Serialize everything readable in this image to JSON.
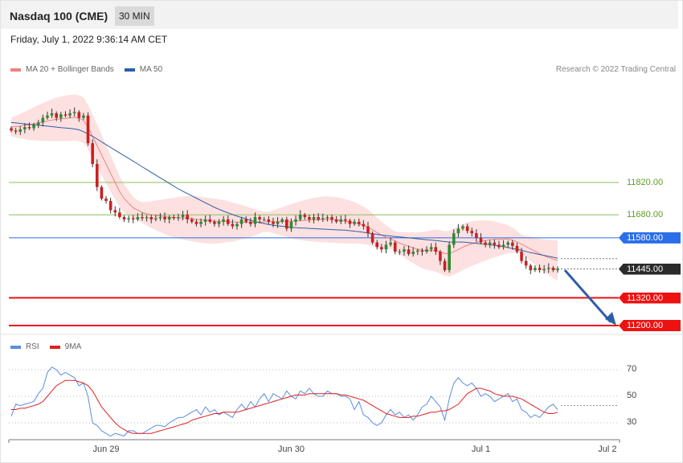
{
  "header": {
    "title": "Nasdaq 100 (CME)",
    "timeframe": "30 MIN"
  },
  "datetime": "Friday, July 1, 2022 9:36:14 AM CET",
  "legend": {
    "ma20": {
      "label": "MA 20 + Bollinger Bands",
      "color": "#f08080"
    },
    "ma50": {
      "label": "MA 50",
      "color": "#2e5ea8"
    }
  },
  "credit": "Research © 2022 Trading Central",
  "rsi_legend": {
    "rsi": {
      "label": "RSI",
      "color": "#5b8ee0"
    },
    "ma9": {
      "label": "9MA",
      "color": "#e02020"
    }
  },
  "chart_data": [
    {
      "type": "line",
      "title": "",
      "price_scale": {
        "ref_a": 11820,
        "ref_b": 11200
      },
      "x_labels": [
        {
          "label": "Jun 29",
          "bar": 21
        },
        {
          "label": "Jun 30",
          "bar": 62
        },
        {
          "label": "Jul 1",
          "bar": 104
        },
        {
          "label": "Jul 2",
          "bar": 132
        }
      ],
      "levels": [
        {
          "name": "resistance-2",
          "value": 11820.0,
          "label": "11820.00",
          "style": "plain",
          "color": "#8cbf5a"
        },
        {
          "name": "resistance-1",
          "value": 11680.0,
          "label": "11680.00",
          "style": "plain",
          "color": "#8cbf5a"
        },
        {
          "name": "pivot",
          "value": 11580.0,
          "label": "11580.00",
          "style": "tag",
          "color": "#2a6ee8"
        },
        {
          "name": "last-price",
          "value": 11445.0,
          "label": "11445.00",
          "style": "tag",
          "color": "#2b2b2b"
        },
        {
          "name": "support-1",
          "value": 11320.0,
          "label": "11320.00",
          "style": "tag",
          "color": "#ee1111"
        },
        {
          "name": "support-2",
          "value": 11200.0,
          "label": "11200.00",
          "style": "tag",
          "color": "#ee1111"
        }
      ],
      "series": [
        {
          "name": "Price",
          "kind": "ohlc-close",
          "values": [
            12045,
            12040,
            12050,
            12060,
            12055,
            12070,
            12080,
            12100,
            12110,
            12120,
            12100,
            12115,
            12110,
            12120,
            12125,
            12100,
            12110,
            11990,
            11900,
            11800,
            11750,
            11740,
            11700,
            11690,
            11670,
            11660,
            11665,
            11660,
            11670,
            11665,
            11670,
            11660,
            11665,
            11670,
            11660,
            11670,
            11665,
            11670,
            11680,
            11660,
            11650,
            11640,
            11650,
            11660,
            11650,
            11640,
            11650,
            11660,
            11640,
            11630,
            11640,
            11660,
            11650,
            11640,
            11670,
            11660,
            11660,
            11650,
            11640,
            11650,
            11660,
            11620,
            11650,
            11660,
            11680,
            11670,
            11660,
            11670,
            11660,
            11665,
            11670,
            11660,
            11650,
            11660,
            11655,
            11640,
            11650,
            11640,
            11630,
            11600,
            11560,
            11540,
            11530,
            11550,
            11560,
            11520,
            11520,
            11530,
            11510,
            11520,
            11525,
            11520,
            11530,
            11540,
            11520,
            11480,
            11440,
            11550,
            11600,
            11620,
            11630,
            11610,
            11600,
            11580,
            11560,
            11550,
            11560,
            11550,
            11540,
            11550,
            11560,
            11545,
            11520,
            11480,
            11460,
            11440,
            11450,
            11440,
            11445,
            11450,
            11440,
            11445
          ],
          "color": "#2e8a2e"
        },
        {
          "name": "MA 20",
          "values": [
            12060,
            12062,
            12064,
            12068,
            12070,
            12074,
            12078,
            12082,
            12086,
            12090,
            12094,
            12096,
            12098,
            12100,
            12102,
            12098,
            12090,
            12060,
            12020,
            11980,
            11940,
            11900,
            11860,
            11820,
            11780,
            11750,
            11730,
            11710,
            11700,
            11690,
            11684,
            11680,
            11678,
            11675,
            11672,
            11670,
            11668,
            11667,
            11666,
            11665,
            11663,
            11660,
            11658,
            11656,
            11654,
            11652,
            11652,
            11652,
            11650,
            11648,
            11648,
            11648,
            11648,
            11647,
            11648,
            11648,
            11649,
            11650,
            11650,
            11650,
            11651,
            11652,
            11652,
            11653,
            11655,
            11656,
            11657,
            11658,
            11659,
            11660,
            11660,
            11659,
            11657,
            11655,
            11652,
            11648,
            11645,
            11640,
            11634,
            11626,
            11615,
            11603,
            11592,
            11583,
            11576,
            11566,
            11557,
            11550,
            11543,
            11537,
            11530,
            11527,
            11525,
            11525,
            11524,
            11520,
            11512,
            11512,
            11520,
            11530,
            11540,
            11548,
            11555,
            11560,
            11565,
            11568,
            11572,
            11573,
            11574,
            11574,
            11575,
            11570,
            11562,
            11552,
            11542,
            11532,
            11522,
            11512,
            11502,
            11495,
            11488,
            11482
          ],
          "color": "#f08080"
        },
        {
          "name": "MA 50",
          "values": [
            12080,
            12078,
            12076,
            12074,
            12072,
            12070,
            12068,
            12066,
            12064,
            12062,
            12060,
            12058,
            12056,
            12054,
            12052,
            12048,
            12040,
            12030,
            12020,
            12008,
            11996,
            11984,
            11972,
            11960,
            11948,
            11936,
            11924,
            11912,
            11900,
            11888,
            11876,
            11864,
            11852,
            11840,
            11828,
            11816,
            11804,
            11792,
            11782,
            11772,
            11762,
            11752,
            11742,
            11732,
            11722,
            11712,
            11704,
            11696,
            11688,
            11681,
            11674,
            11668,
            11662,
            11656,
            11650,
            11646,
            11642,
            11638,
            11635,
            11632,
            11630,
            11628,
            11626,
            11624,
            11623,
            11622,
            11621,
            11620,
            11619,
            11618,
            11617,
            11616,
            11615,
            11614,
            11613,
            11611,
            11609,
            11607,
            11604,
            11601,
            11598,
            11595,
            11592,
            11590,
            11588,
            11586,
            11584,
            11582,
            11580,
            11578,
            11576,
            11574,
            11572,
            11570,
            11568,
            11566,
            11564,
            11562,
            11562,
            11562,
            11562,
            11560,
            11558,
            11556,
            11554,
            11552,
            11550,
            11548,
            11545,
            11542,
            11538,
            11534,
            11530,
            11526,
            11521,
            11516,
            11512,
            11508,
            11504,
            11500,
            11496,
            11492
          ],
          "color": "#2e5ea8"
        }
      ]
    },
    {
      "type": "line",
      "title": "",
      "ylim": [
        15,
        80
      ],
      "y_ticks": [
        70,
        50,
        30
      ],
      "series": [
        {
          "name": "RSI",
          "values": [
            35,
            44,
            43,
            44,
            45,
            46,
            52,
            56,
            68,
            72,
            70,
            66,
            68,
            66,
            64,
            58,
            60,
            50,
            30,
            28,
            24,
            22,
            20,
            22,
            21,
            20,
            24,
            24,
            22,
            22,
            24,
            26,
            28,
            28,
            27,
            30,
            32,
            34,
            34,
            36,
            38,
            40,
            36,
            42,
            38,
            40,
            36,
            38,
            36,
            34,
            40,
            44,
            40,
            46,
            42,
            48,
            52,
            46,
            52,
            50,
            48,
            54,
            50,
            48,
            54,
            52,
            56,
            52,
            50,
            50,
            54,
            52,
            52,
            50,
            50,
            48,
            40,
            46,
            36,
            34,
            30,
            28,
            30,
            36,
            40,
            36,
            38,
            34,
            36,
            32,
            36,
            42,
            44,
            50,
            46,
            42,
            32,
            48,
            60,
            64,
            60,
            58,
            60,
            56,
            50,
            52,
            50,
            46,
            48,
            50,
            52,
            46,
            48,
            40,
            38,
            34,
            36,
            34,
            38,
            42,
            44,
            40
          ],
          "color": "#5b8ee0"
        },
        {
          "name": "9MA",
          "values": [
            40,
            40,
            41,
            41,
            42,
            43,
            44,
            46,
            50,
            54,
            58,
            60,
            62,
            62,
            62,
            61,
            60,
            58,
            54,
            48,
            42,
            38,
            34,
            30,
            27,
            25,
            23,
            22,
            22,
            22,
            22,
            22,
            23,
            24,
            25,
            26,
            27,
            28,
            29,
            30,
            32,
            33,
            34,
            35,
            36,
            37,
            37,
            38,
            38,
            38,
            38,
            39,
            40,
            41,
            42,
            43,
            44,
            45,
            46,
            47,
            48,
            49,
            50,
            51,
            51,
            51,
            52,
            52,
            52,
            52,
            52,
            52,
            52,
            51,
            51,
            50,
            49,
            48,
            47,
            45,
            43,
            41,
            39,
            37,
            36,
            35,
            34,
            34,
            34,
            35,
            35,
            36,
            37,
            38,
            38,
            39,
            39,
            40,
            42,
            44,
            48,
            52,
            54,
            56,
            56,
            55,
            54,
            52,
            51,
            50,
            50,
            50,
            49,
            48,
            46,
            44,
            42,
            40,
            38,
            37,
            37,
            38
          ],
          "color": "#e02020"
        }
      ]
    }
  ]
}
